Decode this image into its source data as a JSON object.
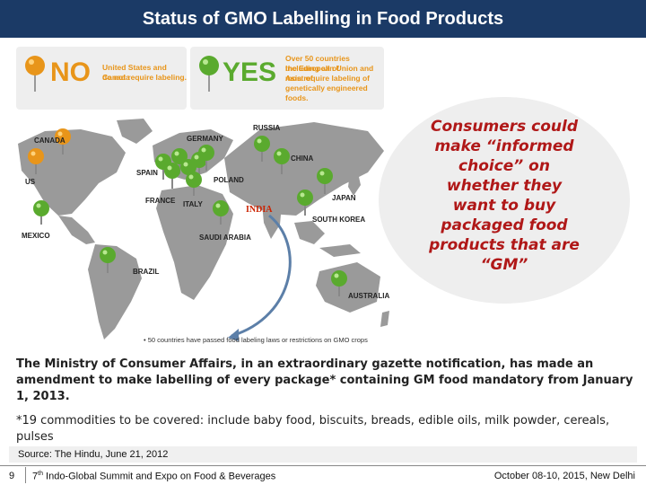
{
  "slide": {
    "title": "Status of GMO Labelling in Food Products"
  },
  "legend": {
    "no_word": "NO",
    "no_text_1": "United States and Canada",
    "no_text_2": "do not require labeling.",
    "yes_word": "YES",
    "yes_text_1": "Over 50 countries including all of",
    "yes_text_2": "the European Union and most of",
    "yes_text_3": "Asia require labeling of",
    "yes_text_4": "genetically engineered foods.",
    "no_color": "#e8951a",
    "yes_color": "#5aaa2e"
  },
  "map": {
    "labels": {
      "russia": "RUSSIA",
      "canada": "CANADA",
      "germany": "GERMANY",
      "china": "CHINA",
      "spain": "SPAIN",
      "us": "US",
      "poland": "POLAND",
      "france": "FRANCE",
      "italy": "ITALY",
      "japan": "JAPAN",
      "south_korea": "SOUTH KOREA",
      "mexico": "MEXICO",
      "saudi_arabia": "SAUDI ARABIA",
      "brazil": "BRAZIL",
      "australia": "AUSTRALIA",
      "india": "INDIA"
    },
    "note": "• 50 countries have passed  food labeling laws or restrictions on GMO crops"
  },
  "callout": {
    "line1": "Consumers  could",
    "line2": "make “informed",
    "line3": "choice” on",
    "line4": "whether they",
    "line5": "want to buy",
    "line6": "packaged food",
    "line7": "products that are",
    "line8": "“GM”"
  },
  "ministry_text": "The Ministry of Consumer Affairs, in an extraordinary gazette notification, has made an amendment to make labelling of every package* containing GM food mandatory from January 1, 2013.",
  "commodities_text": "*19 commodities to be covered: include baby food, biscuits, breads, edible oils, milk powder, cereals, pulses",
  "source_text": "Source: The Hindu, June 21, 2012",
  "footer": {
    "page": "9",
    "event_num": "7",
    "event_sup": "th",
    "event_rest": " Indo-Global Summit and Expo on Food & Beverages",
    "date_place": "October 08-10, 2015, New Delhi"
  }
}
